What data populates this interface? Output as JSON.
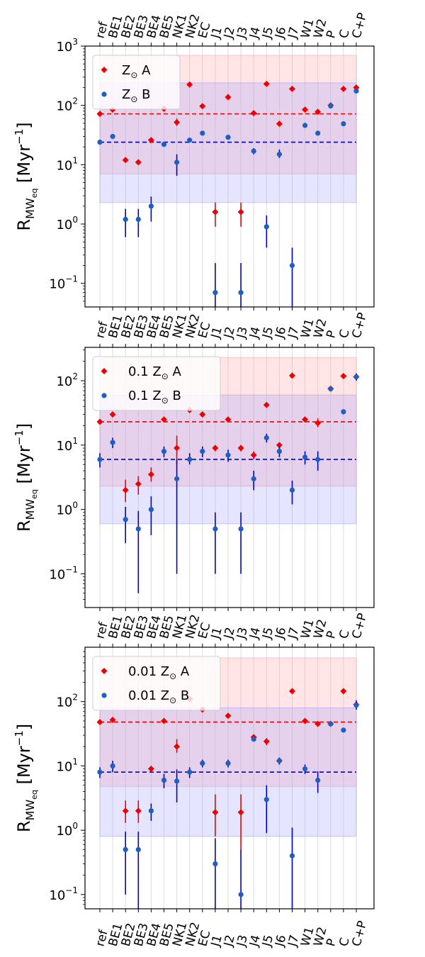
{
  "chart_data": {
    "type": "scatter",
    "yscale": "log",
    "ylabel_main": "R",
    "ylabel_sub": "MW",
    "ylabel_subsub": "eq",
    "ylabel_unit": "[Myr",
    "ylabel_exp": "−1",
    "ylabel_close": "]",
    "categories": [
      "ref",
      "BE1",
      "BE2",
      "BE3",
      "BE4",
      "BE5",
      "NK1",
      "NK2",
      "EC",
      "J1",
      "J2",
      "J3",
      "J4",
      "J5",
      "J6",
      "J7",
      "W1",
      "W2",
      "P",
      "C",
      "C+P"
    ],
    "colors": {
      "A": "#ee0000",
      "B": "#1f5fc0",
      "B_err": "#0000cc",
      "bandA": "#ff9999",
      "bandB": "#9999ff",
      "refA": "#ee0000",
      "refB": "#0000cc"
    },
    "panels": [
      {
        "ylim": [
          0.04,
          1000
        ],
        "ticks": [
          {
            "value": 0.1,
            "label": "10",
            "exp": "−1"
          },
          {
            "value": 1,
            "label": "10",
            "exp": "0"
          },
          {
            "value": 10,
            "label": "10",
            "exp": "1"
          },
          {
            "value": 100,
            "label": "10",
            "exp": "2"
          },
          {
            "value": 1000,
            "label": "10",
            "exp": "3"
          }
        ],
        "legend": {
          "a_prefix": "",
          "b_prefix": "",
          "z_symbol": "Z",
          "sun": "⊙",
          "a_suffix": " A",
          "b_suffix": " B"
        },
        "ref_A": 72,
        "ref_B": 24,
        "band_A": [
          7,
          700
        ],
        "band_B": [
          2.3,
          240
        ],
        "series_A": [
          {
            "y": 72
          },
          {
            "y": 85
          },
          {
            "y": 12
          },
          {
            "y": 11
          },
          {
            "y": 26
          },
          {
            "y": 88
          },
          {
            "y": 52,
            "lo": 45,
            "hi": 60
          },
          {
            "y": 225
          },
          {
            "y": 97
          },
          {
            "y": 1.6,
            "lo": 0.9,
            "hi": 2.3
          },
          {
            "y": 138
          },
          {
            "y": 1.6,
            "lo": 0.9,
            "hi": 2.3
          },
          {
            "y": 74
          },
          {
            "y": 230
          },
          {
            "y": 49
          },
          {
            "y": 190
          },
          {
            "y": 85
          },
          {
            "y": 78
          },
          {
            "y": 100
          },
          {
            "y": 190
          },
          {
            "y": 200
          }
        ],
        "series_B": [
          {
            "y": 24
          },
          {
            "y": 30
          },
          {
            "y": 1.2,
            "lo": 0.6,
            "hi": 1.8
          },
          {
            "y": 1.2,
            "lo": 0.6,
            "hi": 1.8
          },
          {
            "y": 2,
            "lo": 1.1,
            "hi": 2.9
          },
          {
            "y": 22
          },
          {
            "y": 11,
            "lo": 6.5,
            "hi": 15
          },
          {
            "y": 26
          },
          {
            "y": 34
          },
          {
            "y": 0.07,
            "lo": 0.04,
            "hi": 0.22
          },
          {
            "y": 29
          },
          {
            "y": 0.07,
            "lo": 0.04,
            "hi": 0.22
          },
          {
            "y": 17,
            "lo": 15,
            "hi": 19
          },
          {
            "y": 0.9,
            "lo": 0.4,
            "hi": 1.4
          },
          {
            "y": 15,
            "lo": 13,
            "hi": 18
          },
          {
            "y": 0.2,
            "lo": 0.04,
            "hi": 0.4
          },
          {
            "y": 46
          },
          {
            "y": 34
          },
          {
            "y": 98
          },
          {
            "y": 49
          },
          {
            "y": 175
          }
        ]
      },
      {
        "ylim": [
          0.03,
          330
        ],
        "ticks": [
          {
            "value": 0.1,
            "label": "10",
            "exp": "−1"
          },
          {
            "value": 1,
            "label": "10",
            "exp": "0"
          },
          {
            "value": 10,
            "label": "10",
            "exp": "1"
          },
          {
            "value": 100,
            "label": "10",
            "exp": "2"
          }
        ],
        "legend": {
          "a_prefix": "0.1 ",
          "b_prefix": "0.1 ",
          "z_symbol": "Z",
          "sun": "⊙",
          "a_suffix": " A",
          "b_suffix": " B"
        },
        "ref_A": 23,
        "ref_B": 6,
        "band_A": [
          2.3,
          230
        ],
        "band_B": [
          0.6,
          60
        ],
        "series_A": [
          {
            "y": 23
          },
          {
            "y": 30
          },
          {
            "y": 2,
            "lo": 1.3,
            "hi": 2.9
          },
          {
            "y": 2.5,
            "lo": 1.7,
            "hi": 3.3
          },
          {
            "y": 3.5,
            "lo": 2.7,
            "hi": 4.5
          },
          {
            "y": 25
          },
          {
            "y": 9,
            "lo": 5,
            "hi": 14
          },
          {
            "y": 35
          },
          {
            "y": 30
          },
          {
            "y": 9,
            "lo": 8,
            "hi": 10
          },
          {
            "y": 25
          },
          {
            "y": 9,
            "lo": 8,
            "hi": 10
          },
          {
            "y": 7,
            "lo": 6,
            "hi": 8
          },
          {
            "y": 42
          },
          {
            "y": 10,
            "lo": 9,
            "hi": 11
          },
          {
            "y": 120
          },
          {
            "y": 25
          },
          {
            "y": 22,
            "lo": 19,
            "hi": 26
          },
          {
            "y": 75
          },
          {
            "y": 118
          },
          {
            "y": 115
          }
        ],
        "series_B": [
          {
            "y": 6,
            "lo": 4.5,
            "hi": 7.5
          },
          {
            "y": 11,
            "lo": 9,
            "hi": 13
          },
          {
            "y": 0.7,
            "lo": 0.3,
            "hi": 1.1
          },
          {
            "y": 0.5,
            "lo": 0.05,
            "hi": 0.95
          },
          {
            "y": 1,
            "lo": 0.4,
            "hi": 1.6
          },
          {
            "y": 8,
            "lo": 6.5,
            "hi": 9.5
          },
          {
            "y": 3,
            "lo": 0.1,
            "hi": 6
          },
          {
            "y": 6,
            "lo": 5,
            "hi": 7.5
          },
          {
            "y": 8,
            "lo": 6.5,
            "hi": 9.5
          },
          {
            "y": 0.5,
            "lo": 0.1,
            "hi": 0.9
          },
          {
            "y": 7,
            "lo": 5.5,
            "hi": 8.5
          },
          {
            "y": 0.5,
            "lo": 0.1,
            "hi": 0.9
          },
          {
            "y": 3,
            "lo": 2,
            "hi": 4
          },
          {
            "y": 13,
            "lo": 11,
            "hi": 15
          },
          {
            "y": 8,
            "lo": 6.5,
            "hi": 9.5
          },
          {
            "y": 2,
            "lo": 1.2,
            "hi": 2.8
          },
          {
            "y": 6.5,
            "lo": 5,
            "hi": 8
          },
          {
            "y": 6,
            "lo": 4,
            "hi": 8
          },
          {
            "y": 75
          },
          {
            "y": 33,
            "lo": 30,
            "hi": 36
          },
          {
            "y": 115,
            "lo": 100,
            "hi": 130
          }
        ]
      },
      {
        "ylim": [
          0.06,
          700
        ],
        "ticks": [
          {
            "value": 0.1,
            "label": "10",
            "exp": "−1"
          },
          {
            "value": 1,
            "label": "10",
            "exp": "0"
          },
          {
            "value": 10,
            "label": "10",
            "exp": "1"
          },
          {
            "value": 100,
            "label": "10",
            "exp": "2"
          }
        ],
        "legend": {
          "a_prefix": "0.01 ",
          "b_prefix": "0.01 ",
          "z_symbol": "Z",
          "sun": "⊙",
          "a_suffix": " A",
          "b_suffix": " B"
        },
        "ref_A": 48,
        "ref_B": 8,
        "band_A": [
          4.8,
          480
        ],
        "band_B": [
          0.8,
          80
        ],
        "series_A": [
          {
            "y": 48
          },
          {
            "y": 52,
            "lo": 48,
            "hi": 56
          },
          {
            "y": 2,
            "lo": 1.3,
            "hi": 2.9
          },
          {
            "y": 2,
            "lo": 1.3,
            "hi": 2.9
          },
          {
            "y": 9
          },
          {
            "y": 50
          },
          {
            "y": 20,
            "lo": 16,
            "hi": 26
          },
          {
            "y": 110
          },
          {
            "y": 75
          },
          {
            "y": 1.9,
            "lo": 0.8,
            "hi": 3.6
          },
          {
            "y": 60
          },
          {
            "y": 1.9,
            "lo": 0.5,
            "hi": 3.6
          },
          {
            "y": 28,
            "lo": 26,
            "hi": 30
          },
          {
            "y": 24,
            "lo": 21,
            "hi": 27
          },
          {
            "y": 12
          },
          {
            "y": 145
          },
          {
            "y": 50
          },
          {
            "y": 45
          },
          {
            "y": 45
          },
          {
            "y": 145
          },
          {
            "y": 90
          }
        ],
        "series_B": [
          {
            "y": 8,
            "lo": 6.5,
            "hi": 9.5
          },
          {
            "y": 10,
            "lo": 8,
            "hi": 12
          },
          {
            "y": 0.5,
            "lo": 0.1,
            "hi": 0.95
          },
          {
            "y": 0.5,
            "lo": 0.06,
            "hi": 0.95
          },
          {
            "y": 2,
            "lo": 1.4,
            "hi": 2.6
          },
          {
            "y": 6,
            "lo": 4.5,
            "hi": 7.5
          },
          {
            "y": 5.8,
            "lo": 2.7,
            "hi": 8.8
          },
          {
            "y": 8,
            "lo": 6.5,
            "hi": 9.5
          },
          {
            "y": 11,
            "lo": 9.5,
            "hi": 12.5
          },
          {
            "y": 0.3,
            "lo": 0.06,
            "hi": 0.75
          },
          {
            "y": 11,
            "lo": 9.5,
            "hi": 12.5
          },
          {
            "y": 0.1,
            "lo": 0.06,
            "hi": 0.5
          },
          {
            "y": 26
          },
          {
            "y": 3,
            "lo": 0.9,
            "hi": 5
          },
          {
            "y": 12,
            "lo": 10.5,
            "hi": 13.5
          },
          {
            "y": 0.4,
            "lo": 0.06,
            "hi": 1.1
          },
          {
            "y": 9,
            "lo": 7.5,
            "hi": 10.5
          },
          {
            "y": 6,
            "lo": 3.8,
            "hi": 8.2
          },
          {
            "y": 45
          },
          {
            "y": 36
          },
          {
            "y": 88,
            "lo": 75,
            "hi": 105
          }
        ]
      }
    ]
  }
}
